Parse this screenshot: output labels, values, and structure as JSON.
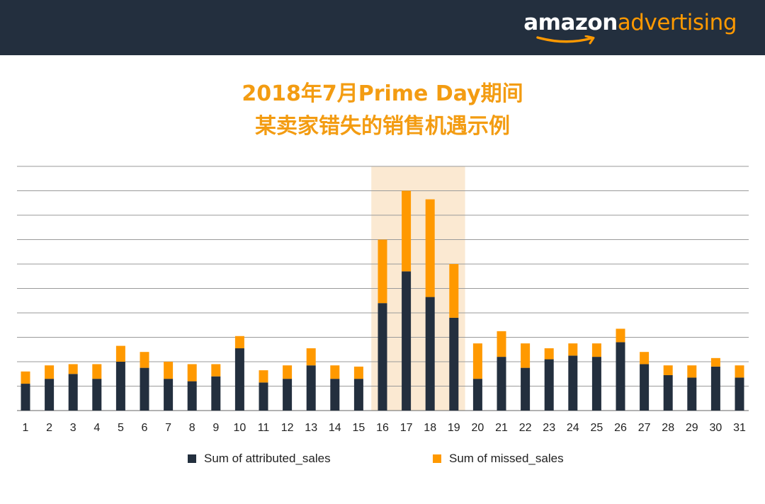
{
  "header": {
    "logo_amazon": "amazon",
    "logo_advertising": "advertising",
    "bg_color": "#232f3e"
  },
  "title": {
    "line1": "2018年7月Prime Day期间",
    "line2": "某卖家错失的销售机遇示例"
  },
  "chart_data": {
    "type": "bar",
    "stacked": true,
    "categories": [
      "1",
      "2",
      "3",
      "4",
      "5",
      "6",
      "7",
      "8",
      "9",
      "10",
      "11",
      "12",
      "13",
      "14",
      "15",
      "16",
      "17",
      "18",
      "19",
      "20",
      "21",
      "22",
      "23",
      "24",
      "25",
      "26",
      "27",
      "28",
      "29",
      "30",
      "31"
    ],
    "series": [
      {
        "name": "Sum of attributed_sales",
        "color": "#232f3e",
        "values": [
          1.1,
          1.3,
          1.5,
          1.3,
          2.0,
          1.75,
          1.3,
          1.2,
          1.4,
          2.55,
          1.15,
          1.3,
          1.85,
          1.3,
          1.3,
          4.4,
          5.7,
          4.65,
          3.8,
          1.3,
          2.2,
          1.75,
          2.1,
          2.25,
          2.2,
          2.8,
          1.9,
          1.45,
          1.35,
          1.8,
          1.35
        ]
      },
      {
        "name": "Sum of missed_sales",
        "color": "#ff9900",
        "values": [
          0.5,
          0.55,
          0.4,
          0.6,
          0.65,
          0.65,
          0.7,
          0.7,
          0.5,
          0.5,
          0.5,
          0.55,
          0.7,
          0.55,
          0.5,
          2.6,
          3.3,
          4.0,
          2.2,
          1.45,
          1.05,
          1.0,
          0.45,
          0.5,
          0.55,
          0.55,
          0.5,
          0.4,
          0.5,
          0.35,
          0.5
        ]
      }
    ],
    "ylim": [
      0,
      10
    ],
    "grid": true,
    "y_tick_labels_visible": false,
    "highlight": {
      "from": "16",
      "to": "19",
      "color": "#fbe9d2"
    },
    "legend": "bottom-center"
  }
}
